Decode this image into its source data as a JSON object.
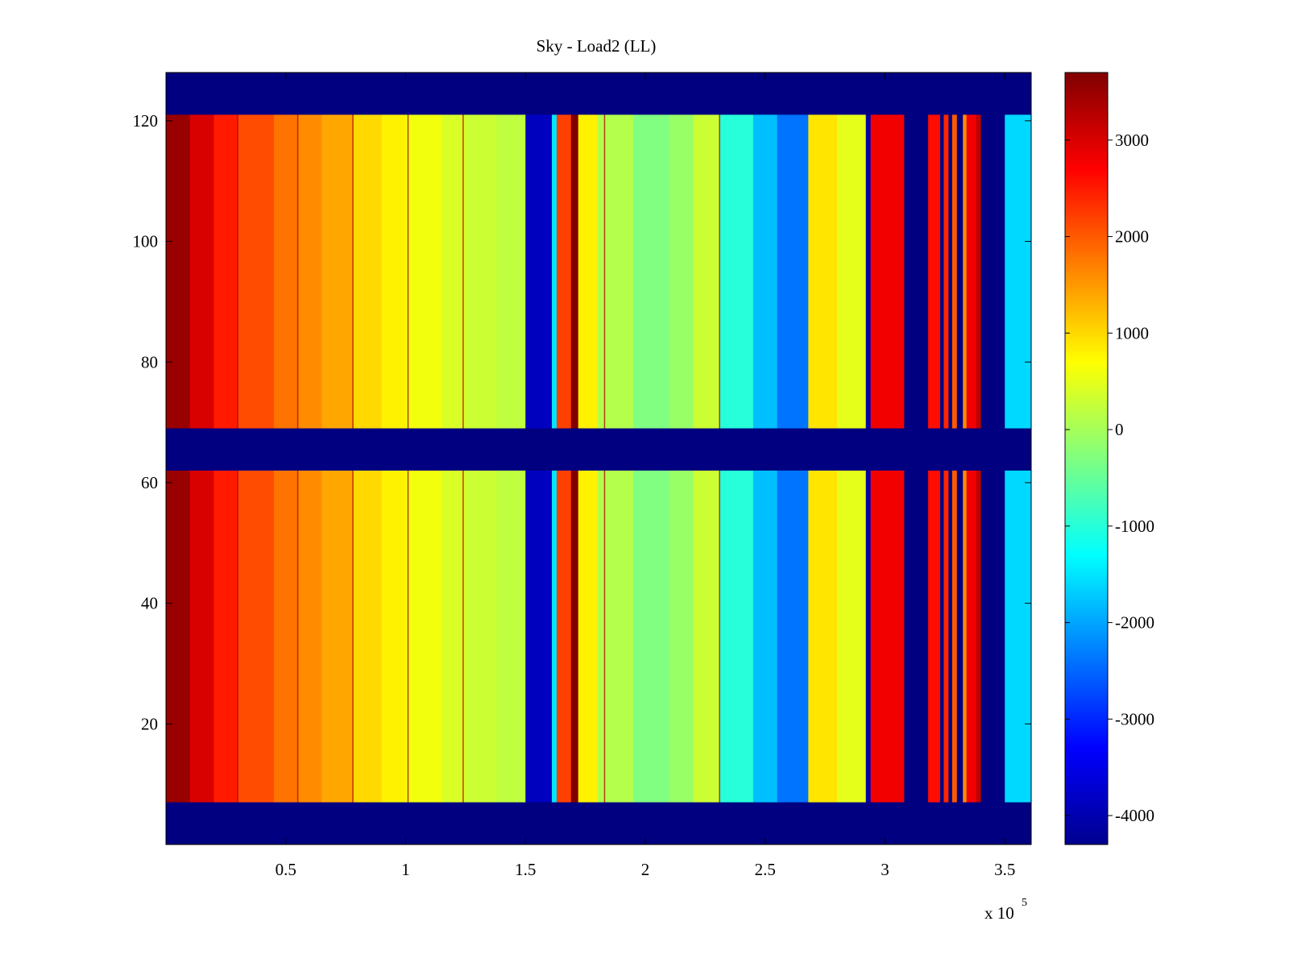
{
  "chart_data": {
    "type": "heatmap",
    "title": "Sky - Load2 (LL)",
    "xlabel": "",
    "ylabel": "",
    "x_multiplier_label": "x 10",
    "x_multiplier_exponent": "5",
    "xlim": [
      0,
      361000
    ],
    "ylim": [
      0,
      128
    ],
    "xticks": [
      {
        "value": 50000,
        "label": "0.5"
      },
      {
        "value": 100000,
        "label": "1"
      },
      {
        "value": 150000,
        "label": "1.5"
      },
      {
        "value": 200000,
        "label": "2"
      },
      {
        "value": 250000,
        "label": "2.5"
      },
      {
        "value": 300000,
        "label": "3"
      },
      {
        "value": 350000,
        "label": "3.5"
      }
    ],
    "yticks": [
      {
        "value": 20,
        "label": "20"
      },
      {
        "value": 40,
        "label": "40"
      },
      {
        "value": 60,
        "label": "60"
      },
      {
        "value": 80,
        "label": "80"
      },
      {
        "value": 100,
        "label": "100"
      },
      {
        "value": 120,
        "label": "120"
      }
    ],
    "colormap": "jet",
    "colorbar": {
      "range": [
        -4300,
        3700
      ],
      "ticks": [
        {
          "value": 3000,
          "label": "3000"
        },
        {
          "value": 2000,
          "label": "2000"
        },
        {
          "value": 1000,
          "label": "1000"
        },
        {
          "value": 0,
          "label": "0"
        },
        {
          "value": -1000,
          "label": "-1000"
        },
        {
          "value": -2000,
          "label": "-2000"
        },
        {
          "value": -3000,
          "label": "-3000"
        },
        {
          "value": -4000,
          "label": "-4000"
        }
      ]
    },
    "masked_channel_rows": [
      {
        "from": 0,
        "to": 7
      },
      {
        "from": 62,
        "to": 69
      },
      {
        "from": 121,
        "to": 128
      }
    ],
    "column_bands": [
      {
        "x_start": 0,
        "x_end": 10000,
        "value": 3500
      },
      {
        "x_start": 10000,
        "x_end": 20000,
        "value": 3000
      },
      {
        "x_start": 20000,
        "x_end": 30000,
        "value": 2500
      },
      {
        "x_start": 30000,
        "x_end": 45000,
        "value": 2100
      },
      {
        "x_start": 45000,
        "x_end": 55000,
        "value": 1800
      },
      {
        "x_start": 55000,
        "x_end": 65000,
        "value": 1600
      },
      {
        "x_start": 65000,
        "x_end": 78000,
        "value": 1400
      },
      {
        "x_start": 78000,
        "x_end": 90000,
        "value": 1000
      },
      {
        "x_start": 90000,
        "x_end": 100000,
        "value": 800
      },
      {
        "x_start": 100000,
        "x_end": 115000,
        "value": 600
      },
      {
        "x_start": 115000,
        "x_end": 125000,
        "value": 400
      },
      {
        "x_start": 125000,
        "x_end": 138000,
        "value": 300
      },
      {
        "x_start": 138000,
        "x_end": 150000,
        "value": 200
      },
      {
        "x_start": 150000,
        "x_end": 161000,
        "value": -3800
      },
      {
        "x_start": 161000,
        "x_end": 163000,
        "value": -1500
      },
      {
        "x_start": 163000,
        "x_end": 169000,
        "value": 2200
      },
      {
        "x_start": 169000,
        "x_end": 172000,
        "value": 3700
      },
      {
        "x_start": 172000,
        "x_end": 180000,
        "value": 800
      },
      {
        "x_start": 180000,
        "x_end": 195000,
        "value": 100
      },
      {
        "x_start": 195000,
        "x_end": 210000,
        "value": -300
      },
      {
        "x_start": 210000,
        "x_end": 220000,
        "value": -100
      },
      {
        "x_start": 220000,
        "x_end": 231000,
        "value": 300
      },
      {
        "x_start": 231000,
        "x_end": 245000,
        "value": -1000
      },
      {
        "x_start": 245000,
        "x_end": 255000,
        "value": -1800
      },
      {
        "x_start": 255000,
        "x_end": 268000,
        "value": -2400
      },
      {
        "x_start": 268000,
        "x_end": 280000,
        "value": 900
      },
      {
        "x_start": 280000,
        "x_end": 292000,
        "value": 500
      },
      {
        "x_start": 292000,
        "x_end": 294000,
        "value": -4000
      },
      {
        "x_start": 294000,
        "x_end": 308000,
        "value": 2800
      },
      {
        "x_start": 308000,
        "x_end": 318000,
        "value": -4300
      },
      {
        "x_start": 318000,
        "x_end": 323000,
        "value": 2600
      },
      {
        "x_start": 323000,
        "x_end": 324500,
        "value": -4300
      },
      {
        "x_start": 324500,
        "x_end": 326500,
        "value": 2400
      },
      {
        "x_start": 326500,
        "x_end": 328000,
        "value": -4300
      },
      {
        "x_start": 328000,
        "x_end": 330000,
        "value": 2000
      },
      {
        "x_start": 330000,
        "x_end": 332500,
        "value": -4300
      },
      {
        "x_start": 332500,
        "x_end": 334000,
        "value": 1600
      },
      {
        "x_start": 334000,
        "x_end": 338000,
        "value": 2800
      },
      {
        "x_start": 338000,
        "x_end": 340000,
        "value": 3200
      },
      {
        "x_start": 340000,
        "x_end": 350000,
        "value": -4300
      },
      {
        "x_start": 350000,
        "x_end": 361000,
        "value": -1600
      }
    ],
    "narrow_lines_x": [
      30000,
      55000,
      78000,
      101000,
      124000,
      183000,
      231000
    ],
    "grid": false,
    "legend": "none"
  }
}
